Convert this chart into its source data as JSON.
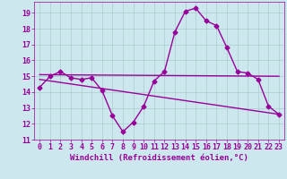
{
  "xlabel": "Windchill (Refroidissement éolien,°C)",
  "background_color": "#cce8ee",
  "grid_color": "#aacccc",
  "line_color": "#990099",
  "xlim": [
    -0.5,
    23.5
  ],
  "ylim": [
    11,
    19.7
  ],
  "yticks": [
    11,
    12,
    13,
    14,
    15,
    16,
    17,
    18,
    19
  ],
  "xticks": [
    0,
    1,
    2,
    3,
    4,
    5,
    6,
    7,
    8,
    9,
    10,
    11,
    12,
    13,
    14,
    15,
    16,
    17,
    18,
    19,
    20,
    21,
    22,
    23
  ],
  "curve1_x": [
    0,
    1,
    2,
    3,
    4,
    5,
    6,
    7,
    8,
    9,
    10,
    11,
    12,
    13,
    14,
    15,
    16,
    17,
    18,
    19,
    20,
    21,
    22,
    23
  ],
  "curve1_y": [
    14.3,
    15.0,
    15.3,
    14.9,
    14.8,
    14.9,
    14.1,
    12.5,
    11.5,
    12.1,
    13.1,
    14.7,
    15.3,
    17.8,
    19.1,
    19.3,
    18.5,
    18.2,
    16.8,
    15.3,
    15.2,
    14.8,
    13.1,
    12.6
  ],
  "curve2_x": [
    0,
    23
  ],
  "curve2_y": [
    15.1,
    15.0
  ],
  "curve3_x": [
    0,
    23
  ],
  "curve3_y": [
    14.8,
    12.6
  ],
  "marker": "D",
  "markersize": 2.5,
  "linewidth": 1.0,
  "font_color": "#990099",
  "tick_fontsize": 6,
  "label_fontsize": 6.5
}
